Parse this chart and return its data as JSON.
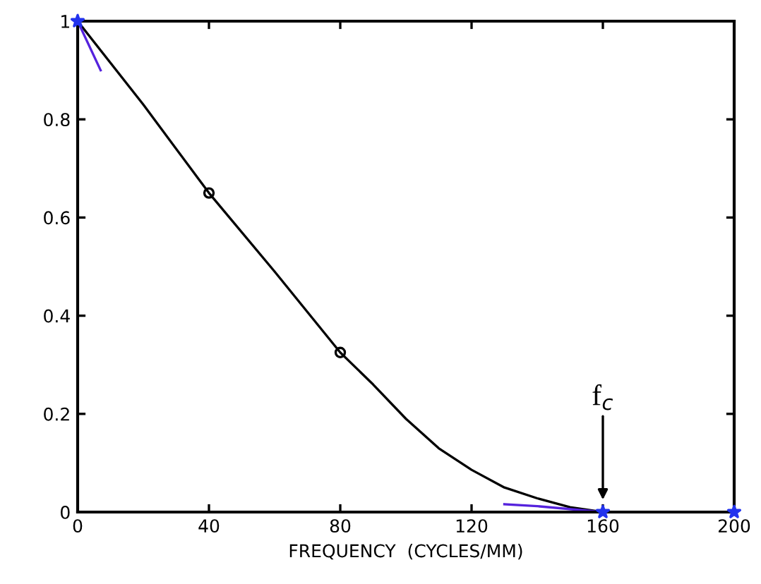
{
  "chart_data": {
    "type": "line",
    "xlabel": "FREQUENCY  (CYCLES/MM)",
    "xlim": [
      0,
      200
    ],
    "ylim": [
      0,
      1
    ],
    "xticks": [
      0,
      40,
      80,
      120,
      160,
      200
    ],
    "yticks": [
      0,
      0.2,
      0.4,
      0.6,
      0.8,
      1
    ],
    "grid": false,
    "legend": false,
    "series": [
      {
        "color": "#000000",
        "x": [
          0,
          20,
          40,
          60,
          80,
          90,
          100,
          110,
          120,
          130,
          140,
          150,
          160
        ],
        "values": [
          1,
          0.83,
          0.65,
          0.49,
          0.325,
          0.26,
          0.19,
          0.13,
          0.086,
          0.05,
          0.028,
          0.01,
          0
        ],
        "marker": "none"
      },
      {
        "type": "scatter",
        "color": "#000000",
        "x": [
          40,
          80
        ],
        "values": [
          0.65,
          0.325
        ],
        "marker": "circle"
      },
      {
        "color": "#5522dd",
        "x": [
          0,
          7,
          70,
          130,
          140,
          160,
          200
        ],
        "values": [
          1,
          0.9,
          null,
          0.016,
          0.012,
          0,
          0
        ],
        "marker": "none"
      },
      {
        "type": "scatter",
        "color": "#2233ee",
        "x": [
          0,
          160,
          200
        ],
        "values": [
          1,
          0,
          0
        ],
        "marker": "star"
      }
    ],
    "annotations": [
      "f$_{c}$"
    ]
  }
}
